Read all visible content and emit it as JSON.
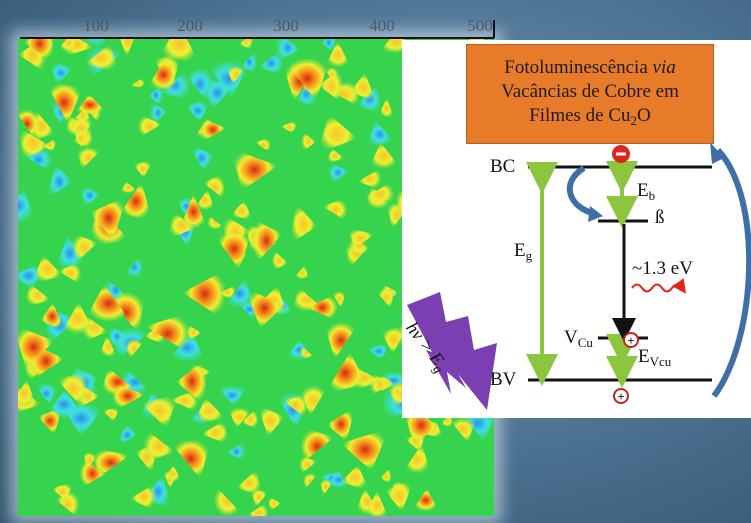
{
  "axis_top": {
    "ticks": [
      "100",
      "200",
      "300",
      "400",
      "500"
    ]
  },
  "title": {
    "line1_prefix": "Fotoluminescência ",
    "line1_italic": "via",
    "line2": "Vacâncias de Cobre em",
    "line3_prefix": "Filmes de Cu",
    "line3_sub": "2",
    "line3_suffix": "O"
  },
  "levels": {
    "bc": "BC",
    "bv": "BV",
    "beta": "ß",
    "eg_main": "E",
    "eg_sub": "g",
    "eb_main": "E",
    "eb_sub": "b",
    "vcu_main": "V",
    "vcu_sub": "Cu",
    "evcu_main": "E",
    "evcu_sub": "Vcu",
    "emission": "~1.3 eV"
  },
  "excitation": {
    "main": "hν > E",
    "sub": "g"
  },
  "colors": {
    "title_box": "#e87b29",
    "arrow_green": "#8cc63f",
    "arrow_blue": "#3f6fa6",
    "emission_red": "#e0261c",
    "lightning": "#7b3fb2"
  }
}
